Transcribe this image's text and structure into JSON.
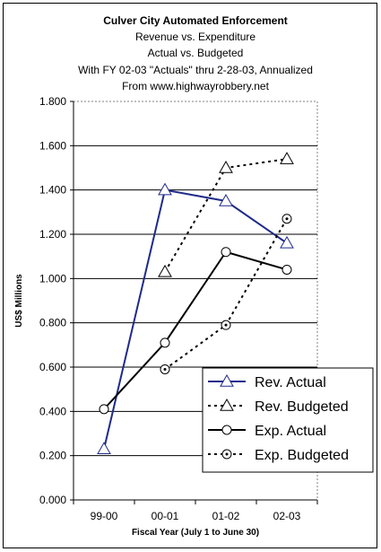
{
  "chart_data": {
    "type": "line",
    "title_lines": [
      "Culver City Automated Enforcement",
      "Revenue vs. Expenditure",
      "Actual vs. Budgeted",
      "With FY 02-03 \"Actuals\" thru 2-28-03, Annualized",
      "From www.highwayrobbery.net"
    ],
    "xlabel": "Fiscal Year (July 1 to June 30)",
    "ylabel": "US$ Millions",
    "categories": [
      "99-00",
      "00-01",
      "01-02",
      "02-03"
    ],
    "ylim": [
      0,
      1.8
    ],
    "yticks": [
      "0.000",
      "0.200",
      "0.400",
      "0.600",
      "0.800",
      "1.000",
      "1.200",
      "1.400",
      "1.600",
      "1.800"
    ],
    "grid": "horizontal",
    "legend_position": "bottom-right",
    "series": [
      {
        "name": "Rev. Actual",
        "values": [
          0.23,
          1.4,
          1.35,
          1.16
        ],
        "color": "#1f2a8a",
        "dash": "solid",
        "marker": "triangle"
      },
      {
        "name": "Rev. Budgeted",
        "values": [
          null,
          1.03,
          1.5,
          1.54
        ],
        "color": "#000000",
        "dash": "dotted",
        "marker": "triangle"
      },
      {
        "name": "Exp. Actual",
        "values": [
          0.41,
          0.71,
          1.12,
          1.04
        ],
        "color": "#000000",
        "dash": "solid",
        "marker": "circle"
      },
      {
        "name": "Exp. Budgeted",
        "values": [
          null,
          0.59,
          0.79,
          1.27
        ],
        "color": "#000000",
        "dash": "dotted",
        "marker": "circle-dot"
      }
    ]
  }
}
